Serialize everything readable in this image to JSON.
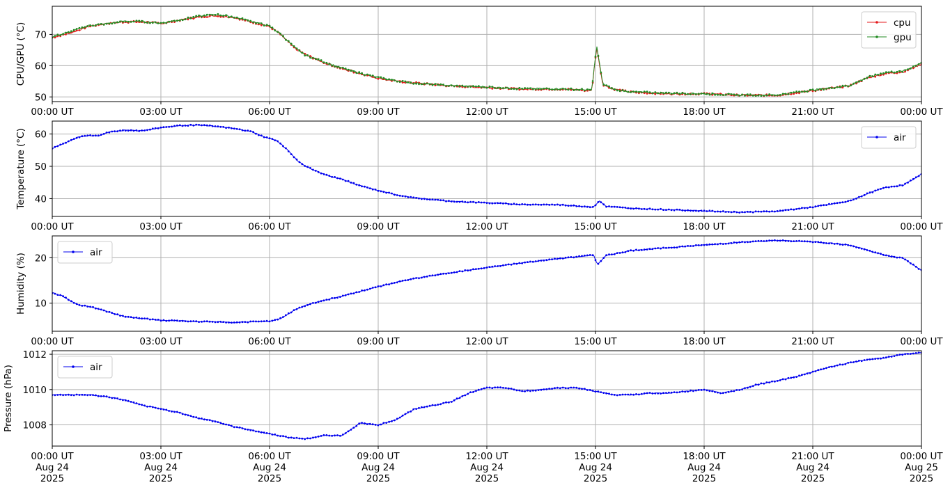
{
  "chart_data": [
    {
      "type": "line",
      "ylabel": "CPU/GPU (°C)",
      "ylim": [
        48.5,
        79
      ],
      "yticks": [
        50,
        60,
        70
      ],
      "xticks": [
        "00:00 UT",
        "03:00 UT",
        "06:00 UT",
        "09:00 UT",
        "12:00 UT",
        "15:00 UT",
        "18:00 UT",
        "21:00 UT",
        "00:00 UT"
      ],
      "xlim_hours": [
        0,
        24
      ],
      "grid": true,
      "legend": "top-right",
      "series": [
        {
          "name": "cpu",
          "color": "#e41a1c",
          "points": [
            [
              0,
              69
            ],
            [
              0.5,
              70.5
            ],
            [
              1,
              72.5
            ],
            [
              1.5,
              73.5
            ],
            [
              2,
              74
            ],
            [
              2.5,
              74
            ],
            [
              3,
              73.5
            ],
            [
              3.5,
              74.5
            ],
            [
              4,
              75.5
            ],
            [
              4.5,
              76
            ],
            [
              5,
              75.5
            ],
            [
              5.5,
              74
            ],
            [
              6,
              72.5
            ],
            [
              6.3,
              70
            ],
            [
              6.7,
              65.5
            ],
            [
              7,
              63.5
            ],
            [
              7.5,
              61
            ],
            [
              8,
              59
            ],
            [
              8.5,
              57.5
            ],
            [
              9,
              56
            ],
            [
              9.5,
              55
            ],
            [
              10,
              54.5
            ],
            [
              11,
              53.5
            ],
            [
              12,
              53
            ],
            [
              13,
              52.5
            ],
            [
              14,
              52.5
            ],
            [
              14.9,
              52
            ],
            [
              15.03,
              66
            ],
            [
              15.2,
              54
            ],
            [
              15.5,
              52.5
            ],
            [
              16,
              51.5
            ],
            [
              17,
              51
            ],
            [
              18,
              51
            ],
            [
              19,
              50.5
            ],
            [
              20,
              50.5
            ],
            [
              21,
              52
            ],
            [
              22,
              53.5
            ],
            [
              22.5,
              56
            ],
            [
              23,
              57.5
            ],
            [
              23.5,
              58
            ],
            [
              24,
              60.5
            ]
          ]
        },
        {
          "name": "gpu",
          "color": "#228b22",
          "points": [
            [
              0,
              69.2
            ],
            [
              0.5,
              70.8
            ],
            [
              1,
              72.8
            ],
            [
              1.5,
              73.4
            ],
            [
              2,
              74.2
            ],
            [
              2.5,
              74.1
            ],
            [
              3,
              73.6
            ],
            [
              3.5,
              74.6
            ],
            [
              4,
              75.7
            ],
            [
              4.5,
              76.4
            ],
            [
              5,
              75.6
            ],
            [
              5.5,
              74.2
            ],
            [
              6,
              72.6
            ],
            [
              6.3,
              70.2
            ],
            [
              6.7,
              65.7
            ],
            [
              7,
              63.3
            ],
            [
              7.5,
              61.2
            ],
            [
              8,
              59.2
            ],
            [
              8.5,
              57.6
            ],
            [
              9,
              56.2
            ],
            [
              9.5,
              55.2
            ],
            [
              10,
              54.4
            ],
            [
              11,
              53.6
            ],
            [
              12,
              53.2
            ],
            [
              13,
              52.6
            ],
            [
              14,
              52.6
            ],
            [
              14.9,
              52.2
            ],
            [
              15.03,
              66.5
            ],
            [
              15.2,
              54.2
            ],
            [
              15.5,
              52.4
            ],
            [
              16,
              51.6
            ],
            [
              17,
              51.2
            ],
            [
              18,
              51
            ],
            [
              19,
              50.6
            ],
            [
              20,
              50.6
            ],
            [
              21,
              52.2
            ],
            [
              22,
              53.6
            ],
            [
              22.5,
              56.2
            ],
            [
              23,
              57.8
            ],
            [
              23.5,
              58.2
            ],
            [
              24,
              61
            ]
          ]
        }
      ]
    },
    {
      "type": "line",
      "ylabel": "Temperature (°C)",
      "ylim": [
        34.5,
        64
      ],
      "yticks": [
        40,
        50,
        60
      ],
      "xticks": [
        "00:00 UT",
        "03:00 UT",
        "06:00 UT",
        "09:00 UT",
        "12:00 UT",
        "15:00 UT",
        "18:00 UT",
        "21:00 UT",
        "00:00 UT"
      ],
      "xlim_hours": [
        0,
        24
      ],
      "grid": true,
      "legend": "top-right",
      "series": [
        {
          "name": "air",
          "color": "#0000ee",
          "points": [
            [
              0,
              55.5
            ],
            [
              0.3,
              57
            ],
            [
              0.7,
              59
            ],
            [
              1,
              59.5
            ],
            [
              1.3,
              59.5
            ],
            [
              1.5,
              60.5
            ],
            [
              2,
              61.2
            ],
            [
              2.5,
              61
            ],
            [
              3,
              62
            ],
            [
              3.5,
              62.6
            ],
            [
              4,
              62.8
            ],
            [
              4.5,
              62.4
            ],
            [
              5,
              61.7
            ],
            [
              5.5,
              60.8
            ],
            [
              5.8,
              59.3
            ],
            [
              6.2,
              58
            ],
            [
              6.5,
              55
            ],
            [
              6.8,
              51.5
            ],
            [
              7,
              50
            ],
            [
              7.5,
              47.5
            ],
            [
              8,
              46
            ],
            [
              8.5,
              44
            ],
            [
              9,
              42.5
            ],
            [
              9.5,
              41.2
            ],
            [
              10,
              40.2
            ],
            [
              11,
              39.2
            ],
            [
              12,
              38.7
            ],
            [
              13,
              38.2
            ],
            [
              14,
              38.1
            ],
            [
              14.95,
              37.4
            ],
            [
              15.1,
              39.3
            ],
            [
              15.3,
              37.6
            ],
            [
              16,
              37
            ],
            [
              17,
              36.6
            ],
            [
              18,
              36.2
            ],
            [
              19,
              35.8
            ],
            [
              20,
              36.1
            ],
            [
              21,
              37.4
            ],
            [
              22,
              39.2
            ],
            [
              22.5,
              41.5
            ],
            [
              23,
              43.5
            ],
            [
              23.5,
              44.2
            ],
            [
              24,
              47.5
            ]
          ]
        }
      ]
    },
    {
      "type": "line",
      "ylabel": "Humidity (%)",
      "ylim": [
        3.8,
        24.8
      ],
      "yticks": [
        10,
        20
      ],
      "xticks": [
        "00:00 UT",
        "03:00 UT",
        "06:00 UT",
        "09:00 UT",
        "12:00 UT",
        "15:00 UT",
        "18:00 UT",
        "21:00 UT",
        "00:00 UT"
      ],
      "xlim_hours": [
        0,
        24
      ],
      "grid": true,
      "legend": "top-left",
      "series": [
        {
          "name": "air",
          "color": "#0000ee",
          "points": [
            [
              0,
              12.3
            ],
            [
              0.3,
              11.5
            ],
            [
              0.7,
              9.6
            ],
            [
              1,
              9.3
            ],
            [
              1.5,
              8.2
            ],
            [
              2,
              7
            ],
            [
              2.5,
              6.6
            ],
            [
              3,
              6.2
            ],
            [
              3.5,
              6.1
            ],
            [
              4,
              5.9
            ],
            [
              4.5,
              5.9
            ],
            [
              5,
              5.7
            ],
            [
              5.5,
              5.9
            ],
            [
              6,
              6
            ],
            [
              6.3,
              6.6
            ],
            [
              6.7,
              8.5
            ],
            [
              7,
              9.5
            ],
            [
              7.5,
              10.6
            ],
            [
              8,
              11.5
            ],
            [
              8.5,
              12.6
            ],
            [
              9,
              13.6
            ],
            [
              9.5,
              14.6
            ],
            [
              10,
              15.4
            ],
            [
              11,
              16.7
            ],
            [
              12,
              17.8
            ],
            [
              13,
              18.9
            ],
            [
              14,
              19.8
            ],
            [
              14.95,
              20.6
            ],
            [
              15.05,
              18.5
            ],
            [
              15.3,
              20.5
            ],
            [
              16,
              21.6
            ],
            [
              17,
              22.2
            ],
            [
              18,
              22.8
            ],
            [
              19,
              23.4
            ],
            [
              20,
              23.8
            ],
            [
              21,
              23.5
            ],
            [
              21.5,
              23.2
            ],
            [
              22,
              22.8
            ],
            [
              22.5,
              21.7
            ],
            [
              23,
              20.5
            ],
            [
              23.5,
              19.9
            ],
            [
              24,
              17.2
            ]
          ]
        }
      ]
    },
    {
      "type": "line",
      "ylabel": "Pressure (hPa)",
      "ylim": [
        1006.8,
        1012.2
      ],
      "yticks": [
        1008,
        1010,
        1012
      ],
      "xticks": [
        "00:00 UT\nAug 24\n2025",
        "03:00 UT\nAug 24\n2025",
        "06:00 UT\nAug 24\n2025",
        "09:00 UT\nAug 24\n2025",
        "12:00 UT\nAug 24\n2025",
        "15:00 UT\nAug 24\n2025",
        "18:00 UT\nAug 24\n2025",
        "21:00 UT\nAug 24\n2025",
        "00:00 UT\nAug 25\n2025"
      ],
      "xlim_hours": [
        0,
        24
      ],
      "grid": true,
      "legend": "top-left",
      "series": [
        {
          "name": "air",
          "color": "#0000ee",
          "points": [
            [
              0,
              1009.7
            ],
            [
              0.5,
              1009.7
            ],
            [
              1,
              1009.7
            ],
            [
              1.5,
              1009.6
            ],
            [
              2,
              1009.4
            ],
            [
              2.5,
              1009.1
            ],
            [
              3,
              1008.9
            ],
            [
              3.5,
              1008.7
            ],
            [
              4,
              1008.4
            ],
            [
              4.5,
              1008.2
            ],
            [
              5,
              1007.9
            ],
            [
              5.5,
              1007.7
            ],
            [
              6,
              1007.5
            ],
            [
              6.5,
              1007.3
            ],
            [
              7,
              1007.2
            ],
            [
              7.5,
              1007.4
            ],
            [
              8,
              1007.4
            ],
            [
              8.5,
              1008.1
            ],
            [
              9,
              1008
            ],
            [
              9.5,
              1008.3
            ],
            [
              10,
              1008.9
            ],
            [
              10.5,
              1009.1
            ],
            [
              11,
              1009.3
            ],
            [
              11.5,
              1009.8
            ],
            [
              12,
              1010.1
            ],
            [
              12.5,
              1010.1
            ],
            [
              13,
              1009.9
            ],
            [
              13.5,
              1010
            ],
            [
              14,
              1010.1
            ],
            [
              14.5,
              1010.1
            ],
            [
              15,
              1009.9
            ],
            [
              15.5,
              1009.7
            ],
            [
              16,
              1009.7
            ],
            [
              16.5,
              1009.8
            ],
            [
              17,
              1009.8
            ],
            [
              17.5,
              1009.9
            ],
            [
              18,
              1010
            ],
            [
              18.5,
              1009.8
            ],
            [
              19,
              1010
            ],
            [
              19.5,
              1010.3
            ],
            [
              20,
              1010.5
            ],
            [
              20.5,
              1010.7
            ],
            [
              21,
              1011
            ],
            [
              21.5,
              1011.3
            ],
            [
              22,
              1011.5
            ],
            [
              22.5,
              1011.7
            ],
            [
              23,
              1011.8
            ],
            [
              23.5,
              1012
            ],
            [
              24,
              1012.1
            ]
          ]
        }
      ]
    }
  ]
}
